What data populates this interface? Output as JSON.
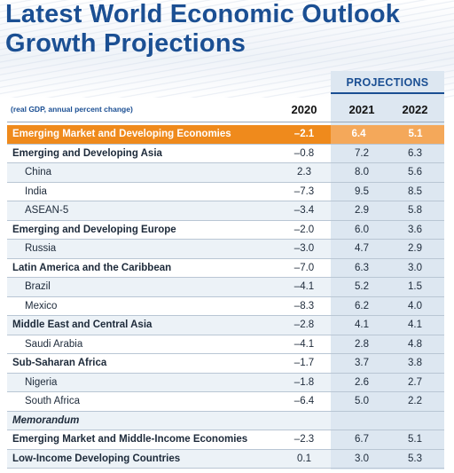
{
  "title": [
    "Latest World Economic Outlook",
    "Growth Projections"
  ],
  "projections_label": "PROJECTIONS",
  "unit_label": "(real GDP, annual percent change)",
  "years": [
    "2020",
    "2021",
    "2022"
  ],
  "rows": [
    {
      "name": "Emerging Market and Developing Economies",
      "v2020": "–2.1",
      "v2021": "6.4",
      "v2022": "5.1",
      "style": "hl"
    },
    {
      "name": "Emerging and Developing Asia",
      "v2020": "–0.8",
      "v2021": "7.2",
      "v2022": "6.3",
      "style": "bold"
    },
    {
      "name": "China",
      "v2020": "2.3",
      "v2021": "8.0",
      "v2022": "5.6",
      "style": "indent shade"
    },
    {
      "name": "India",
      "v2020": "–7.3",
      "v2021": "9.5",
      "v2022": "8.5",
      "style": "indent"
    },
    {
      "name": "ASEAN-5",
      "v2020": "–3.4",
      "v2021": "2.9",
      "v2022": "5.8",
      "style": "indent shade"
    },
    {
      "name": "Emerging and Developing Europe",
      "v2020": "–2.0",
      "v2021": "6.0",
      "v2022": "3.6",
      "style": "bold"
    },
    {
      "name": "Russia",
      "v2020": "–3.0",
      "v2021": "4.7",
      "v2022": "2.9",
      "style": "indent shade"
    },
    {
      "name": "Latin America and the Caribbean",
      "v2020": "–7.0",
      "v2021": "6.3",
      "v2022": "3.0",
      "style": "bold"
    },
    {
      "name": "Brazil",
      "v2020": "–4.1",
      "v2021": "5.2",
      "v2022": "1.5",
      "style": "indent shade"
    },
    {
      "name": "Mexico",
      "v2020": "–8.3",
      "v2021": "6.2",
      "v2022": "4.0",
      "style": "indent"
    },
    {
      "name": "Middle East and Central Asia",
      "v2020": "–2.8",
      "v2021": "4.1",
      "v2022": "4.1",
      "style": "bold shade"
    },
    {
      "name": "Saudi Arabia",
      "v2020": "–4.1",
      "v2021": "2.8",
      "v2022": "4.8",
      "style": "indent"
    },
    {
      "name": "Sub-Saharan Africa",
      "v2020": "–1.7",
      "v2021": "3.7",
      "v2022": "3.8",
      "style": "bold"
    },
    {
      "name": "Nigeria",
      "v2020": "–1.8",
      "v2021": "2.6",
      "v2022": "2.7",
      "style": "indent shade"
    },
    {
      "name": "South Africa",
      "v2020": "–6.4",
      "v2021": "5.0",
      "v2022": "2.2",
      "style": "indent"
    },
    {
      "name": "Memorandum",
      "v2020": "",
      "v2021": "",
      "v2022": "",
      "style": "memo shade"
    },
    {
      "name": "Emerging Market and Middle-Income Economies",
      "v2020": "–2.3",
      "v2021": "6.7",
      "v2022": "5.1",
      "style": "bold"
    },
    {
      "name": "Low-Income Developing Countries",
      "v2020": "0.1",
      "v2021": "3.0",
      "v2022": "5.3",
      "style": "bold shade"
    }
  ],
  "colors": {
    "title": "#1b4f93",
    "highlight": "#ef8a1c",
    "projection_bg": "#dde7f1"
  }
}
